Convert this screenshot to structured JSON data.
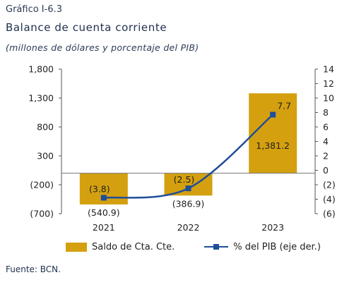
{
  "header": {
    "label": "Gráfico I-6.3",
    "title": "Balance de cuenta corriente",
    "subtitle": "(millones de dólares y porcentaje del PIB)"
  },
  "chart_data": {
    "type": "bar",
    "categories": [
      "2021",
      "2022",
      "2023"
    ],
    "series": [
      {
        "name": "Saldo de Cta. Cte.",
        "type": "bar",
        "axis": "left",
        "values": [
          -540.9,
          -386.9,
          1381.2
        ],
        "labels": [
          "(540.9)",
          "(386.9)",
          "1,381.2"
        ],
        "color": "#d4a00f"
      },
      {
        "name": "% del  PIB (eje der.)",
        "type": "line",
        "axis": "right",
        "values": [
          -3.8,
          -2.5,
          7.7
        ],
        "labels": [
          "(3.8)",
          "(2.5)",
          "7.7"
        ],
        "color": "#1f4e9a"
      }
    ],
    "y_left": {
      "ylim": [
        -700,
        1800
      ],
      "ticks": [
        -700,
        -200,
        300,
        800,
        1300,
        1800
      ],
      "tick_labels": [
        "(700)",
        "(200)",
        "300",
        "800",
        "1,300",
        "1,800"
      ]
    },
    "y_right": {
      "ylim": [
        -6,
        14
      ],
      "ticks": [
        -6,
        -4,
        -2,
        0,
        2,
        4,
        6,
        8,
        10,
        12,
        14
      ],
      "tick_labels": [
        "(6)",
        "(4)",
        "(2)",
        "0",
        "2",
        "4",
        "6",
        "8",
        "10",
        "12",
        "14"
      ]
    },
    "grid": false,
    "legend_position": "bottom"
  },
  "source": "Fuente: BCN."
}
